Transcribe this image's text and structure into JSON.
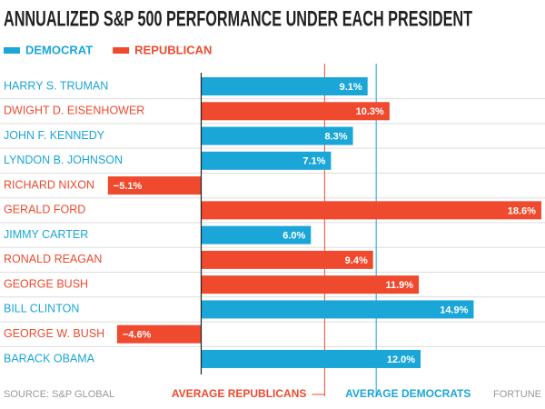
{
  "chart_data": {
    "type": "bar",
    "orientation": "horizontal",
    "title": "ANNUALIZED S&P 500 PERFORMANCE UNDER EACH PRESIDENT",
    "categories": [
      "HARRY S. TRUMAN",
      "DWIGHT D. EISENHOWER",
      "JOHN F. KENNEDY",
      "LYNDON B. JOHNSON",
      "RICHARD NIXON",
      "GERALD FORD",
      "JIMMY CARTER",
      "RONALD REAGAN",
      "GEORGE BUSH",
      "BILL CLINTON",
      "GEORGE W. BUSH",
      "BARACK OBAMA"
    ],
    "series": [
      {
        "name": "DEMOCRAT",
        "color": "#1ba6d8",
        "values": [
          9.1,
          null,
          8.3,
          7.1,
          null,
          null,
          6.0,
          null,
          null,
          14.9,
          null,
          12.0
        ],
        "value_labels": [
          "9.1%",
          null,
          "8.3%",
          "7.1%",
          null,
          null,
          "6.0%",
          null,
          null,
          "14.9%",
          null,
          "12.0%"
        ]
      },
      {
        "name": "REPUBLICAN",
        "color": "#ef4a2e",
        "values": [
          null,
          10.3,
          null,
          null,
          -5.1,
          18.6,
          null,
          9.4,
          11.9,
          null,
          -4.6,
          null
        ],
        "value_labels": [
          null,
          "10.3%",
          null,
          null,
          "−5.1%",
          "18.6%",
          null,
          "9.4%",
          "11.9%",
          null,
          "−4.6%",
          null
        ]
      }
    ],
    "reference_lines": [
      {
        "label": "AVERAGE REPUBLICANS",
        "value": 6.75,
        "color": "#ef4a2e"
      },
      {
        "label": "AVERAGE DEMOCRATS",
        "value": 9.57,
        "color": "#1ba6d8"
      }
    ],
    "xlim": [
      -11,
      18.8
    ],
    "source": "SOURCE: S&P GLOBAL",
    "credit": "FORTUNE"
  }
}
